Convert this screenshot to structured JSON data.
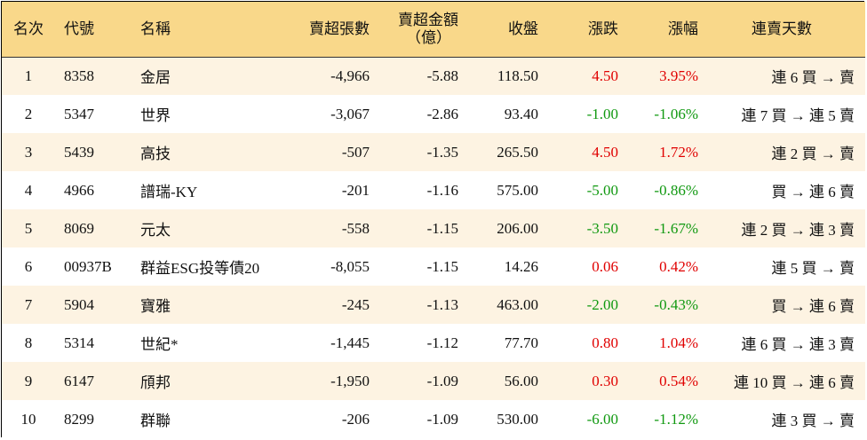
{
  "header": {
    "rank": "名次",
    "code": "代號",
    "name": "名稱",
    "net_sell_shares": "賣超張數",
    "net_sell_amount_line1": "賣超金額",
    "net_sell_amount_line2": "（億）",
    "close": "收盤",
    "change": "漲跌",
    "change_pct": "漲幅",
    "streak": "連賣天數"
  },
  "colors": {
    "header_bg": "#f9d88a",
    "odd_row_bg": "#fdf3e2",
    "up": "#e00000",
    "down": "#119911"
  },
  "rows": [
    {
      "rank": "1",
      "code": "8358",
      "name": "金居",
      "shares": "-4,966",
      "amount": "-5.88",
      "close": "118.50",
      "change": "4.50",
      "pct": "3.95%",
      "dir": "up",
      "streak": "連 6 買 → 賣"
    },
    {
      "rank": "2",
      "code": "5347",
      "name": "世界",
      "shares": "-3,067",
      "amount": "-2.86",
      "close": "93.40",
      "change": "-1.00",
      "pct": "-1.06%",
      "dir": "down",
      "streak": "連 7 買 → 連 5 賣"
    },
    {
      "rank": "3",
      "code": "5439",
      "name": "高技",
      "shares": "-507",
      "amount": "-1.35",
      "close": "265.50",
      "change": "4.50",
      "pct": "1.72%",
      "dir": "up",
      "streak": "連 2 買 → 賣"
    },
    {
      "rank": "4",
      "code": "4966",
      "name": "譜瑞-KY",
      "shares": "-201",
      "amount": "-1.16",
      "close": "575.00",
      "change": "-5.00",
      "pct": "-0.86%",
      "dir": "down",
      "streak": "買 → 連 6 賣"
    },
    {
      "rank": "5",
      "code": "8069",
      "name": "元太",
      "shares": "-558",
      "amount": "-1.15",
      "close": "206.00",
      "change": "-3.50",
      "pct": "-1.67%",
      "dir": "down",
      "streak": "連 2 買 → 連 3 賣"
    },
    {
      "rank": "6",
      "code": "00937B",
      "name": "群益ESG投等債20",
      "shares": "-8,055",
      "amount": "-1.15",
      "close": "14.26",
      "change": "0.06",
      "pct": "0.42%",
      "dir": "up",
      "streak": "連 5 買 → 賣"
    },
    {
      "rank": "7",
      "code": "5904",
      "name": "寶雅",
      "shares": "-245",
      "amount": "-1.13",
      "close": "463.00",
      "change": "-2.00",
      "pct": "-0.43%",
      "dir": "down",
      "streak": "買 → 連 6 賣"
    },
    {
      "rank": "8",
      "code": "5314",
      "name": "世紀*",
      "shares": "-1,445",
      "amount": "-1.12",
      "close": "77.70",
      "change": "0.80",
      "pct": "1.04%",
      "dir": "up",
      "streak": "連 6 買 → 連 3 賣"
    },
    {
      "rank": "9",
      "code": "6147",
      "name": "頎邦",
      "shares": "-1,950",
      "amount": "-1.09",
      "close": "56.00",
      "change": "0.30",
      "pct": "0.54%",
      "dir": "up",
      "streak": "連 10 買 → 連 6 賣"
    },
    {
      "rank": "10",
      "code": "8299",
      "name": "群聯",
      "shares": "-206",
      "amount": "-1.09",
      "close": "530.00",
      "change": "-6.00",
      "pct": "-1.12%",
      "dir": "down",
      "streak": "連 3 買 → 賣"
    }
  ]
}
